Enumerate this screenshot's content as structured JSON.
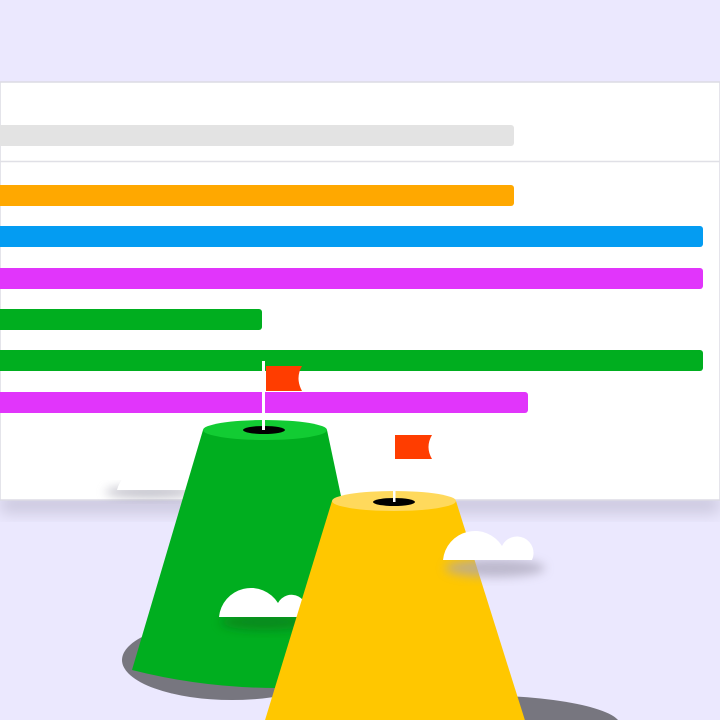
{
  "colors": {
    "background": "#ebe8fe",
    "panel": "#ffffff",
    "placeholder_bar": "#e3e3e3",
    "bars": [
      "#ffa800",
      "#049cf2",
      "#e135fb",
      "#00ae1f",
      "#00ae1f",
      "#e135fb"
    ],
    "green_hill": "#00ae1f",
    "green_hill_top": "#12cc33",
    "yellow_hill": "#ffc700",
    "yellow_hill_top": "#ffd95c",
    "flag": "#ff3d00",
    "shadow": "#77767f",
    "cloud": "#ffffff"
  },
  "icons": [
    "flag-icon",
    "flag-icon",
    "cloud-icon",
    "cloud-icon",
    "cloud-icon"
  ]
}
